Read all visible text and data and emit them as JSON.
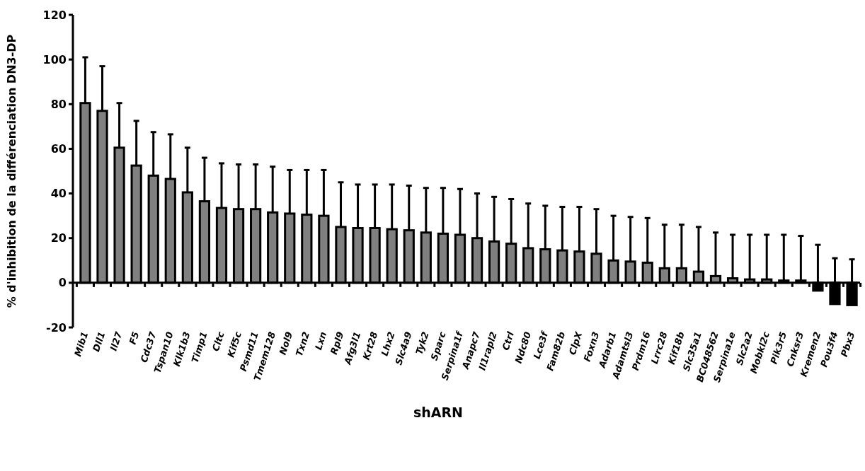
{
  "chart_data": {
    "type": "bar",
    "xlabel": "shARN",
    "ylabel": "% d'inhibition de la différenciation DN3-DP",
    "categories": [
      "Mib1",
      "Dll1",
      "Il27",
      "F5",
      "Cdc37",
      "Tspan10",
      "Klk1b3",
      "Timp1",
      "Cltc",
      "Kif5c",
      "Psmd11",
      "Tmem128",
      "Nol9",
      "Txn2",
      "Lxn",
      "Rpl9",
      "Afg3l1",
      "Krt28",
      "Lhx2",
      "Slc4a9",
      "Tyk2",
      "Sparc",
      "Serpina1f",
      "Anapc7",
      "Il1rapl2",
      "Ctrl",
      "Ndc80",
      "Lce3f",
      "Fam82b",
      "ClpX",
      "Foxn3",
      "Adarb1",
      "Adamtsl3",
      "Prdm16",
      "Lrrc28",
      "Kif18b",
      "Slc35a1",
      "BC048562",
      "Serpina1e",
      "Slc2a2",
      "Mobkl2c",
      "Pik3r5",
      "Cnksr3",
      "Kremen2",
      "Pou3f4",
      "Pbx3"
    ],
    "values": [
      80.5,
      77,
      60.5,
      52.5,
      48,
      46.5,
      40.5,
      36.5,
      33.5,
      33,
      33,
      31.5,
      31,
      30.5,
      30,
      25,
      24.5,
      24.5,
      24,
      23.5,
      22.5,
      22,
      21.5,
      20,
      18.5,
      17.5,
      15.5,
      15,
      14.5,
      14,
      13,
      10,
      9.5,
      9,
      6.5,
      6.5,
      5,
      3,
      2,
      1.5,
      1.5,
      1,
      1,
      -3.5,
      -9.5,
      -10
    ],
    "errors": [
      [
        80.5,
        101
      ],
      [
        77,
        97
      ],
      [
        60.5,
        80.5
      ],
      [
        52.5,
        72.5
      ],
      [
        48,
        67.5
      ],
      [
        46.5,
        66.5
      ],
      [
        40.5,
        60.5
      ],
      [
        36.5,
        56
      ],
      [
        33.5,
        53.5
      ],
      [
        33,
        53
      ],
      [
        33,
        53
      ],
      [
        31.5,
        52
      ],
      [
        31,
        50.5
      ],
      [
        30.5,
        50.5
      ],
      [
        30,
        50.5
      ],
      [
        25,
        45
      ],
      [
        24.5,
        44
      ],
      [
        24.5,
        44
      ],
      [
        24,
        44
      ],
      [
        23.5,
        43.5
      ],
      [
        22.5,
        42.5
      ],
      [
        22,
        42.5
      ],
      [
        21.5,
        42
      ],
      [
        20,
        40
      ],
      [
        18.5,
        38.5
      ],
      [
        17.5,
        37.5
      ],
      [
        15.5,
        35.5
      ],
      [
        15,
        34.5
      ],
      [
        14.5,
        34
      ],
      [
        14,
        34
      ],
      [
        13,
        33
      ],
      [
        10,
        30
      ],
      [
        9.5,
        29.5
      ],
      [
        9,
        29
      ],
      [
        6.5,
        26
      ],
      [
        6.5,
        26
      ],
      [
        5,
        25
      ],
      [
        3,
        22.5
      ],
      [
        2,
        21.5
      ],
      [
        1.5,
        21.5
      ],
      [
        1.5,
        21.5
      ],
      [
        1,
        21.5
      ],
      [
        1,
        21
      ],
      [
        -3.5,
        17
      ],
      [
        -9.5,
        11
      ],
      [
        -10,
        10.5
      ]
    ],
    "colors": [
      "#808080",
      "#808080",
      "#808080",
      "#808080",
      "#808080",
      "#808080",
      "#808080",
      "#808080",
      "#808080",
      "#808080",
      "#808080",
      "#808080",
      "#808080",
      "#808080",
      "#808080",
      "#808080",
      "#808080",
      "#808080",
      "#808080",
      "#808080",
      "#808080",
      "#808080",
      "#808080",
      "#808080",
      "#808080",
      "#808080",
      "#808080",
      "#808080",
      "#808080",
      "#808080",
      "#808080",
      "#808080",
      "#808080",
      "#808080",
      "#808080",
      "#808080",
      "#808080",
      "#808080",
      "#808080",
      "#808080",
      "#808080",
      "#808080",
      "#808080",
      "#000000",
      "#000000",
      "#000000"
    ],
    "ylim": [
      -20,
      120
    ],
    "yticks": [
      -20,
      0,
      20,
      40,
      60,
      80,
      100,
      120
    ]
  }
}
